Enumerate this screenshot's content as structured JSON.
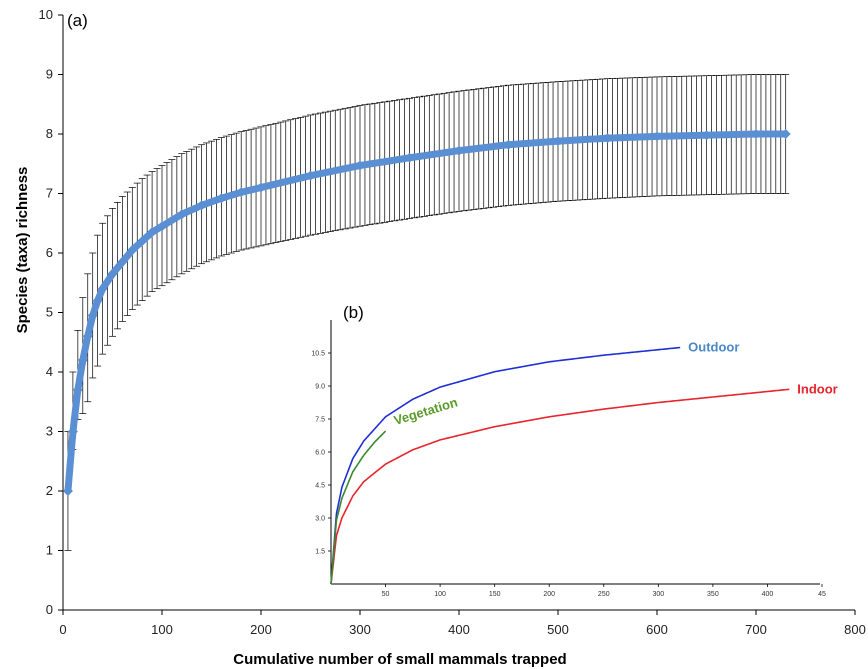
{
  "chart_data": [
    {
      "type": "line",
      "panel_label": "(a)",
      "xlabel": "Cumulative number of small mammals trapped",
      "ylabel": "Species (taxa) richness",
      "xlim": [
        0,
        800
      ],
      "ylim": [
        0,
        10
      ],
      "xticks": [
        "0",
        "100",
        "200",
        "300",
        "400",
        "500",
        "600",
        "700",
        "800"
      ],
      "yticks": [
        "0",
        "1",
        "2",
        "3",
        "4",
        "5",
        "6",
        "7",
        "8",
        "9",
        "10"
      ],
      "series": [
        {
          "color": "#5b8fd4",
          "x": [
            5,
            10,
            15,
            20,
            25,
            30,
            35,
            40,
            50,
            60,
            70,
            80,
            90,
            100,
            120,
            140,
            160,
            180,
            200,
            250,
            300,
            350,
            400,
            450,
            500,
            550,
            600,
            650,
            700,
            730
          ],
          "y": [
            2.0,
            3.0,
            3.7,
            4.2,
            4.6,
            4.95,
            5.2,
            5.4,
            5.65,
            5.85,
            6.05,
            6.2,
            6.35,
            6.45,
            6.65,
            6.8,
            6.92,
            7.02,
            7.1,
            7.3,
            7.47,
            7.6,
            7.72,
            7.82,
            7.88,
            7.93,
            7.96,
            7.98,
            8.0,
            8.0
          ],
          "error_low": [
            1.0,
            2.7,
            3.2,
            3.3,
            3.5,
            3.9,
            4.1,
            4.3,
            4.6,
            4.85,
            5.05,
            5.2,
            5.35,
            5.45,
            5.65,
            5.82,
            5.95,
            6.05,
            6.12,
            6.3,
            6.45,
            6.58,
            6.7,
            6.8,
            6.87,
            6.92,
            6.96,
            6.98,
            7.0,
            7.0
          ],
          "error_high": [
            3.0,
            4.0,
            4.7,
            5.25,
            5.65,
            6.0,
            6.3,
            6.5,
            6.75,
            6.95,
            7.1,
            7.25,
            7.37,
            7.47,
            7.67,
            7.82,
            7.94,
            8.04,
            8.12,
            8.32,
            8.48,
            8.6,
            8.72,
            8.82,
            8.88,
            8.93,
            8.96,
            8.98,
            9.0,
            9.0
          ]
        }
      ]
    },
    {
      "type": "line",
      "panel_label": "(b)",
      "xlim": [
        0,
        450
      ],
      "ylim": [
        0,
        12
      ],
      "xticks": [
        "50",
        "100",
        "150",
        "200",
        "250",
        "300",
        "350",
        "400",
        "45"
      ],
      "yticks": [
        "1.5",
        "3.0",
        "4.5",
        "6.0",
        "7.5",
        "9.0",
        "10.5"
      ],
      "series": [
        {
          "name": "Outdoor",
          "color": "#1f2fd6",
          "label_color": "#4a88c8",
          "x": [
            0,
            5,
            10,
            20,
            30,
            50,
            75,
            100,
            150,
            200,
            250,
            300,
            320
          ],
          "y": [
            0,
            3.2,
            4.4,
            5.7,
            6.5,
            7.6,
            8.4,
            8.95,
            9.65,
            10.1,
            10.4,
            10.65,
            10.75
          ]
        },
        {
          "name": "Indoor",
          "color": "#e8242c",
          "label_color": "#e8242c",
          "x": [
            0,
            5,
            10,
            20,
            30,
            50,
            75,
            100,
            150,
            200,
            250,
            300,
            350,
            400,
            420
          ],
          "y": [
            0,
            2.2,
            3.0,
            4.0,
            4.65,
            5.45,
            6.1,
            6.55,
            7.15,
            7.6,
            7.95,
            8.25,
            8.5,
            8.75,
            8.85
          ]
        },
        {
          "name": "Vegetation",
          "color": "#3a8a2e",
          "label_color": "#5a9a2a",
          "x": [
            0,
            5,
            10,
            20,
            30,
            40,
            50
          ],
          "y": [
            0,
            2.9,
            3.9,
            5.1,
            5.85,
            6.45,
            6.95
          ]
        }
      ]
    }
  ]
}
